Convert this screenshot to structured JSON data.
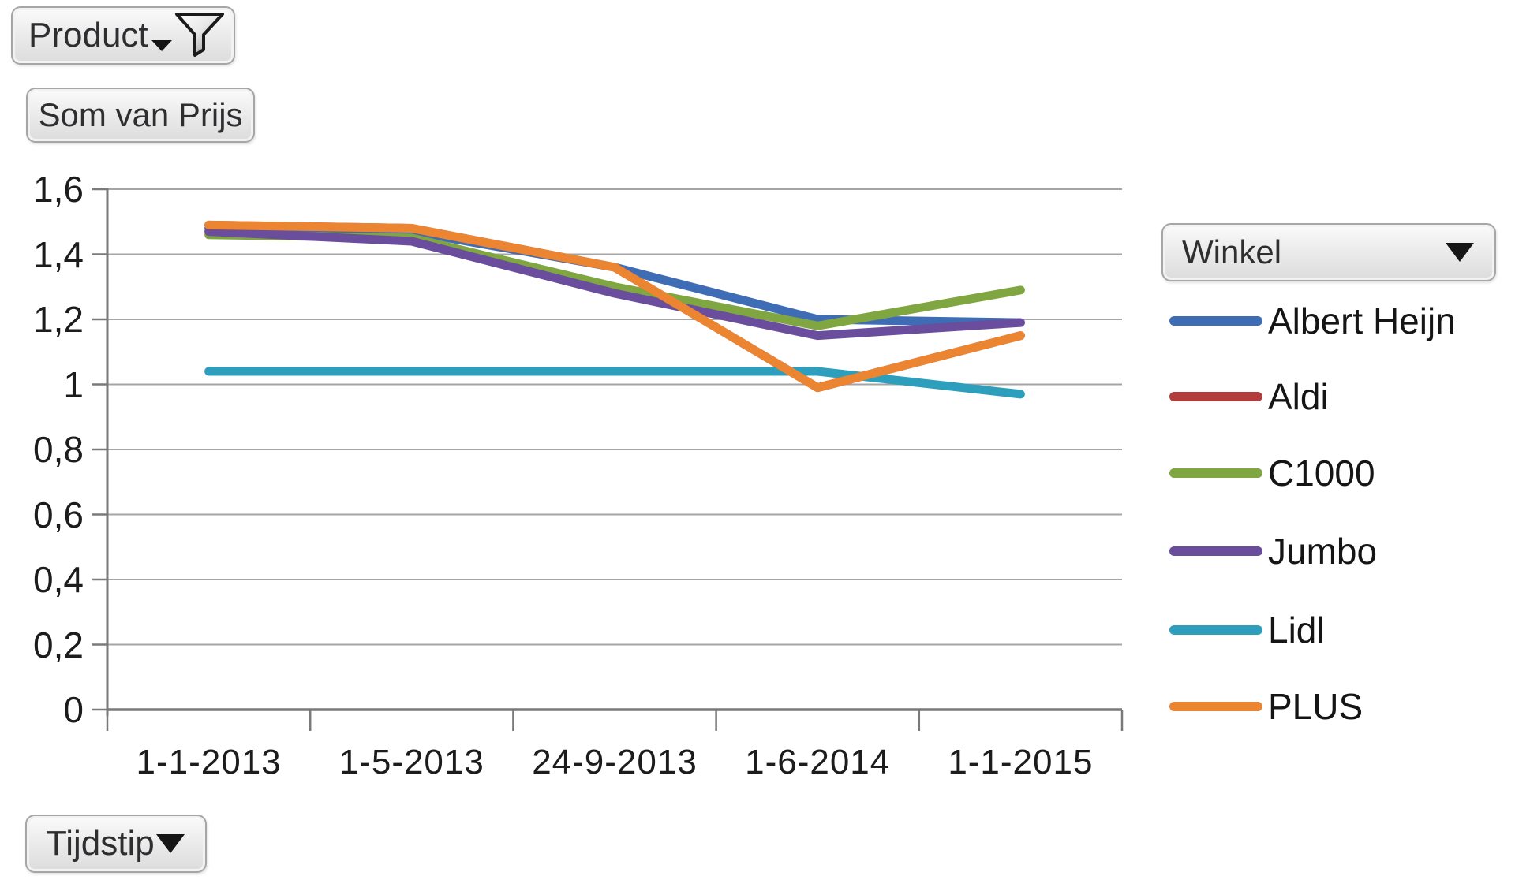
{
  "pivot_buttons": {
    "product": "Product",
    "value_field": "Som van Prijs",
    "time_axis": "Tijdstip",
    "legend_field": "Winkel"
  },
  "chart_data": {
    "type": "line",
    "title": "",
    "xlabel": "",
    "ylabel": "",
    "categories": [
      "1-1-2013",
      "1-5-2013",
      "24-9-2013",
      "1-6-2014",
      "1-1-2015"
    ],
    "series": [
      {
        "name": "Albert Heijn",
        "color": "#3e6cb5",
        "values": [
          1.48,
          1.47,
          1.36,
          1.2,
          1.19
        ]
      },
      {
        "name": "Aldi",
        "color": "#b23b3b",
        "values": [
          1.49,
          1.48,
          1.36,
          0.99,
          1.15
        ]
      },
      {
        "name": "C1000",
        "color": "#7fa640",
        "values": [
          1.46,
          1.45,
          1.3,
          1.18,
          1.29
        ]
      },
      {
        "name": "Jumbo",
        "color": "#6a4d9c",
        "values": [
          1.47,
          1.44,
          1.28,
          1.15,
          1.19
        ]
      },
      {
        "name": "Lidl",
        "color": "#2d9fbc",
        "values": [
          1.04,
          1.04,
          1.04,
          1.04,
          0.97
        ]
      },
      {
        "name": "PLUS",
        "color": "#eb8532",
        "values": [
          1.49,
          1.48,
          1.36,
          0.99,
          1.15
        ]
      }
    ],
    "ylim": [
      0,
      1.6
    ],
    "ytick_step": 0.2,
    "y_tick_labels": [
      "0",
      "0,2",
      "0,4",
      "0,6",
      "0,8",
      "1",
      "1,2",
      "1,4",
      "1,6"
    ],
    "grid": true,
    "legend_title": "Winkel",
    "legend_position": "right",
    "colors": {
      "gridline": "#a4a4a4",
      "axis": "#7a7a7a",
      "tick_text": "#1c1c1c"
    }
  }
}
